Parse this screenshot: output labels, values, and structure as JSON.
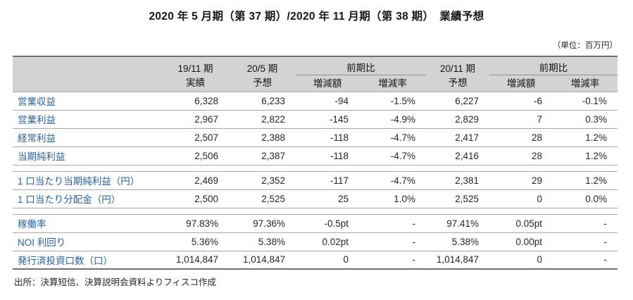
{
  "title": "2020 年 5 月期（第 37 期）/2020 年 11 月期（第 38 期）　業績予想",
  "unit_note": "（単位：百万円）",
  "table": {
    "header": {
      "periods": [
        {
          "label": "19/11 期",
          "sub": "実績"
        },
        {
          "label": "20/5 期",
          "sub": "予想"
        },
        {
          "label": "20/11 期",
          "sub": "予想"
        }
      ],
      "comparison": "前期比",
      "delta_amount": "増減額",
      "delta_rate": "増減率"
    },
    "sections": [
      {
        "rows": [
          {
            "label": "営業収益",
            "values": [
              "6,328",
              "6,233",
              "-94",
              "-1.5%",
              "6,227",
              "-6",
              "-0.1%"
            ]
          },
          {
            "label": "営業利益",
            "values": [
              "2,967",
              "2,822",
              "-145",
              "-4.9%",
              "2,829",
              "7",
              "0.3%"
            ]
          },
          {
            "label": "経常利益",
            "values": [
              "2,507",
              "2,388",
              "-118",
              "-4.7%",
              "2,417",
              "28",
              "1.2%"
            ]
          },
          {
            "label": "当期純利益",
            "values": [
              "2,506",
              "2,387",
              "-118",
              "-4.7%",
              "2,416",
              "28",
              "1.2%"
            ]
          }
        ]
      },
      {
        "rows": [
          {
            "label": "1 口当たり当期純利益（円）",
            "values": [
              "2,469",
              "2,352",
              "-117",
              "-4.7%",
              "2,381",
              "29",
              "1.2%"
            ]
          },
          {
            "label": "1 口当たり分配金（円）",
            "values": [
              "2,500",
              "2,525",
              "25",
              "1.0%",
              "2,525",
              "0",
              "0.0%"
            ]
          }
        ]
      },
      {
        "rows": [
          {
            "label": "稼働率",
            "values": [
              "97.83%",
              "97.36%",
              "-0.5pt",
              "-",
              "97.41%",
              "0.05pt",
              "-"
            ]
          },
          {
            "label": "NOI 利回り",
            "values": [
              "5.36%",
              "5.38%",
              "0.02pt",
              "-",
              "5.38%",
              "0.00pt",
              "-"
            ]
          },
          {
            "label": "発行済投資口数（口）",
            "values": [
              "1,014,847",
              "1,014,847",
              "0",
              "-",
              "1,014,847",
              "0",
              "-"
            ]
          }
        ]
      }
    ]
  },
  "footer": "出所：決算短信、決算説明会資料よりフィスコ作成",
  "colors": {
    "header_background": "#d3d3d3",
    "label_blue": "#2c6198",
    "dark_border": "#707070",
    "thin_border": "#a8a8a8"
  }
}
